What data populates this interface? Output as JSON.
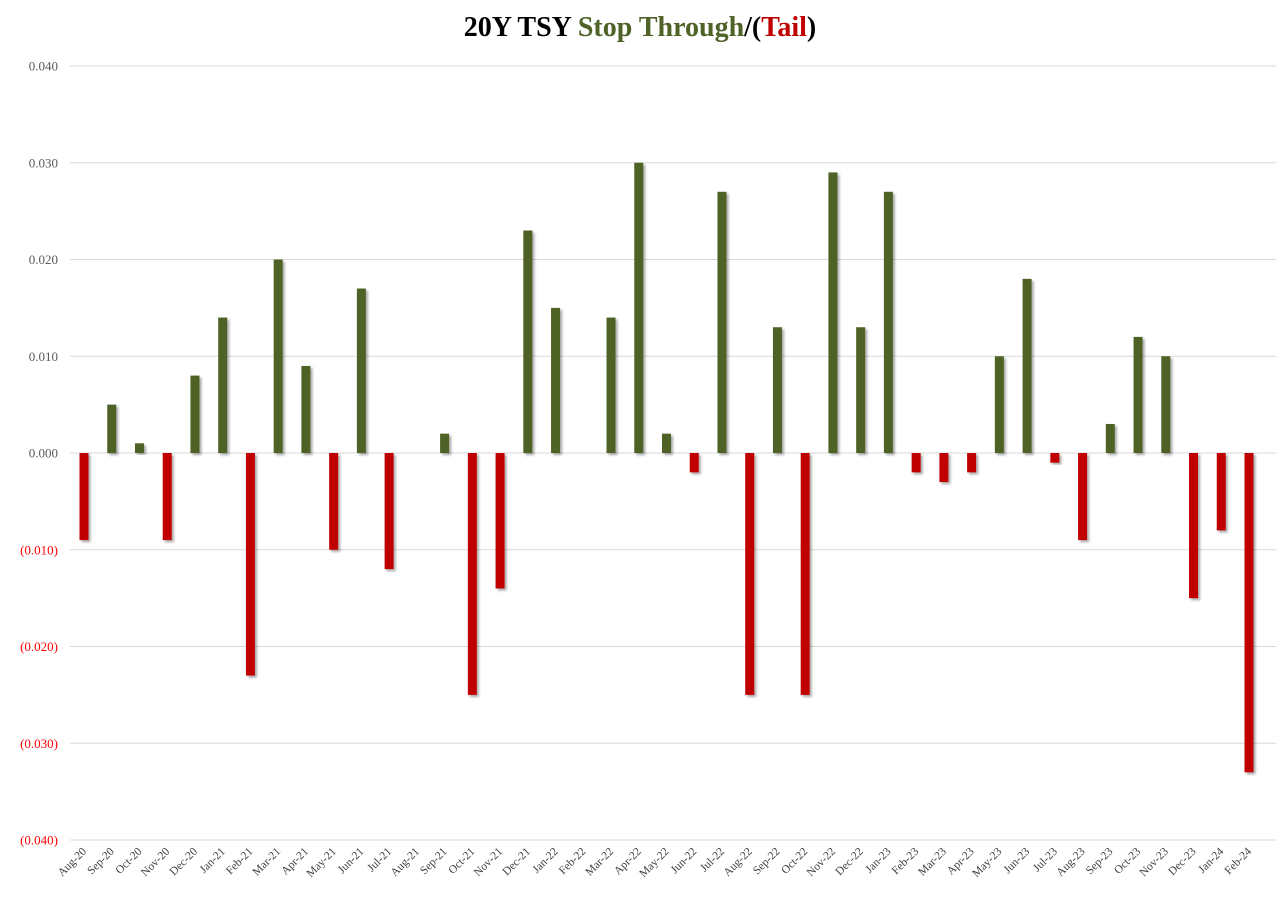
{
  "title": {
    "part1": "20Y TSY ",
    "part2": "Stop Through",
    "part3": "/(",
    "part4": "Tail",
    "part5": ")"
  },
  "colors": {
    "positive": "#4f6228",
    "negative": "#c00000",
    "grid": "#d9d9d9",
    "axis_text": "#595959",
    "negative_text": "#ff0000"
  },
  "chart_data": {
    "type": "bar",
    "title": "20Y TSY Stop Through/(Tail)",
    "xlabel": "",
    "ylabel": "",
    "ylim": [
      -0.04,
      0.04
    ],
    "grid": true,
    "yticks": [
      {
        "value": 0.04,
        "label": "0.040"
      },
      {
        "value": 0.03,
        "label": "0.030"
      },
      {
        "value": 0.02,
        "label": "0.020"
      },
      {
        "value": 0.01,
        "label": "0.010"
      },
      {
        "value": 0.0,
        "label": "0.000"
      },
      {
        "value": -0.01,
        "label": "(0.010)"
      },
      {
        "value": -0.02,
        "label": "(0.020)"
      },
      {
        "value": -0.03,
        "label": "(0.030)"
      },
      {
        "value": -0.04,
        "label": "(0.040)"
      }
    ],
    "categories": [
      "Aug-20",
      "Sep-20",
      "Oct-20",
      "Nov-20",
      "Dec-20",
      "Jan-21",
      "Feb-21",
      "Mar-21",
      "Apr-21",
      "May-21",
      "Jun-21",
      "Jul-21",
      "Aug-21",
      "Sep-21",
      "Oct-21",
      "Nov-21",
      "Dec-21",
      "Jan-22",
      "Feb-22",
      "Mar-22",
      "Apr-22",
      "May-22",
      "Jun-22",
      "Jul-22",
      "Aug-22",
      "Sep-22",
      "Oct-22",
      "Nov-22",
      "Dec-22",
      "Jan-23",
      "Feb-23",
      "Mar-23",
      "Apr-23",
      "May-23",
      "Jun-23",
      "Jul-23",
      "Aug-23",
      "Sep-23",
      "Oct-23",
      "Nov-23",
      "Dec-23",
      "Jan-24",
      "Feb-24"
    ],
    "values": [
      -0.009,
      0.005,
      0.001,
      -0.009,
      0.008,
      0.014,
      -0.023,
      0.02,
      0.009,
      -0.01,
      0.017,
      -0.012,
      0.0,
      0.002,
      -0.025,
      -0.014,
      0.023,
      0.015,
      0.0,
      0.014,
      0.03,
      0.002,
      -0.002,
      0.027,
      -0.025,
      0.013,
      -0.025,
      0.029,
      0.013,
      0.027,
      -0.002,
      -0.003,
      -0.002,
      0.01,
      0.018,
      -0.001,
      -0.009,
      0.003,
      0.012,
      0.01,
      -0.015,
      -0.008,
      -0.033
    ]
  }
}
